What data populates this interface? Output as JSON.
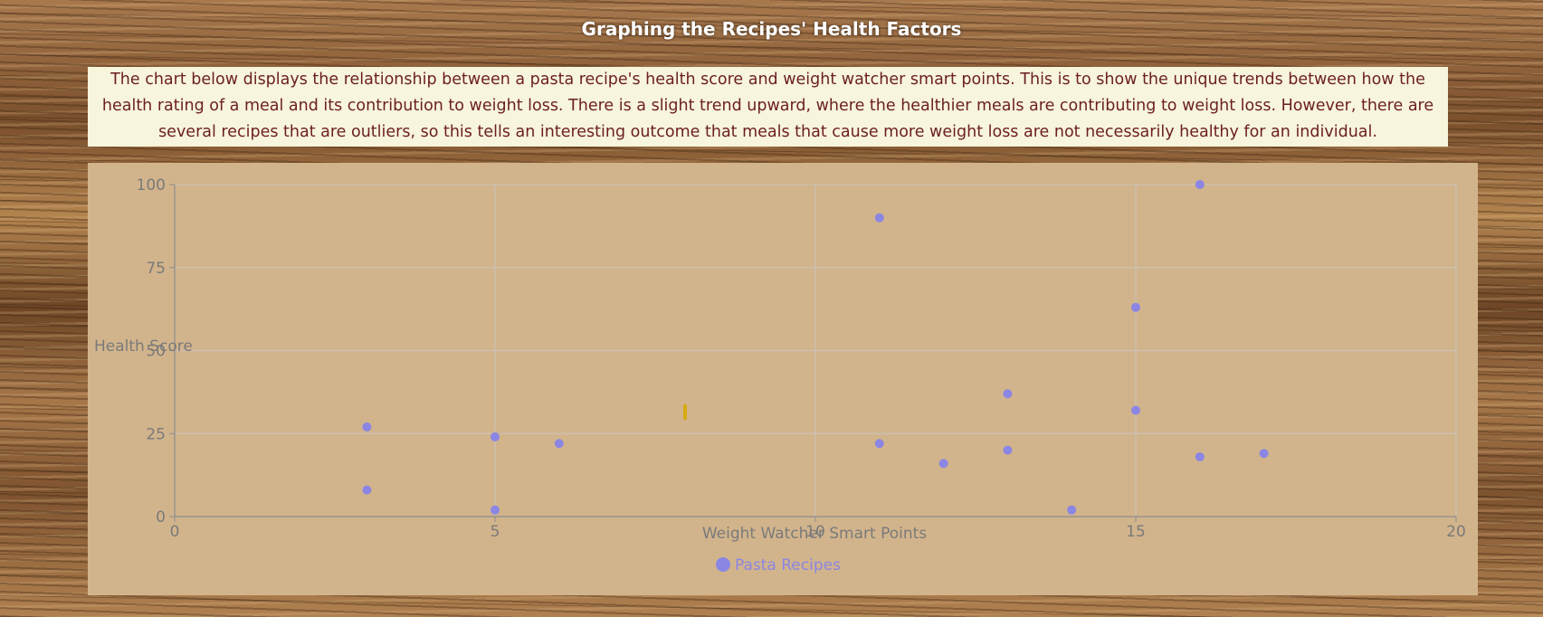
{
  "page": {
    "title": "Graphing the Recipes' Health Factors",
    "description": "The chart below displays the relationship between a pasta recipe's health score and weight watcher smart points. This is to show the unique trends between how the health rating of a meal and its contribution to weight loss. There is a slight trend upward, where the healthier meals are contributing to weight loss. However, there are several recipes that are outliers, so this tells an interesting outcome that meals that cause more weight loss are not necessarily healthy for an individual."
  },
  "colors": {
    "point": "#8b86e3",
    "panel": "#d2b48c",
    "grid": "#c8c3bd",
    "axis": "#8c8c8c",
    "tick_text": "#7a7a7a",
    "description_text": "#6b1f1f",
    "description_bg": "#f7f5dc",
    "cursor_marker": "#d6aa12"
  },
  "chart_data": {
    "type": "scatter",
    "title": "",
    "xlabel": "Weight Watcher Smart Points",
    "ylabel": "Health Score",
    "xlim": [
      0,
      20
    ],
    "ylim": [
      0,
      100
    ],
    "xticks": [
      0,
      5,
      10,
      15,
      20
    ],
    "yticks": [
      0,
      25,
      50,
      75,
      100
    ],
    "grid": true,
    "legend_position": "bottom",
    "series": [
      {
        "name": "Pasta Recipes",
        "points": [
          {
            "x": 3,
            "y": 27
          },
          {
            "x": 3,
            "y": 8
          },
          {
            "x": 5,
            "y": 24
          },
          {
            "x": 5,
            "y": 2
          },
          {
            "x": 6,
            "y": 22
          },
          {
            "x": 11,
            "y": 90
          },
          {
            "x": 11,
            "y": 22
          },
          {
            "x": 12,
            "y": 16
          },
          {
            "x": 13,
            "y": 37
          },
          {
            "x": 13,
            "y": 20
          },
          {
            "x": 14,
            "y": 2
          },
          {
            "x": 15,
            "y": 63
          },
          {
            "x": 15,
            "y": 32
          },
          {
            "x": 16,
            "y": 100
          },
          {
            "x": 16,
            "y": 18
          },
          {
            "x": 17,
            "y": 19
          }
        ]
      }
    ]
  }
}
